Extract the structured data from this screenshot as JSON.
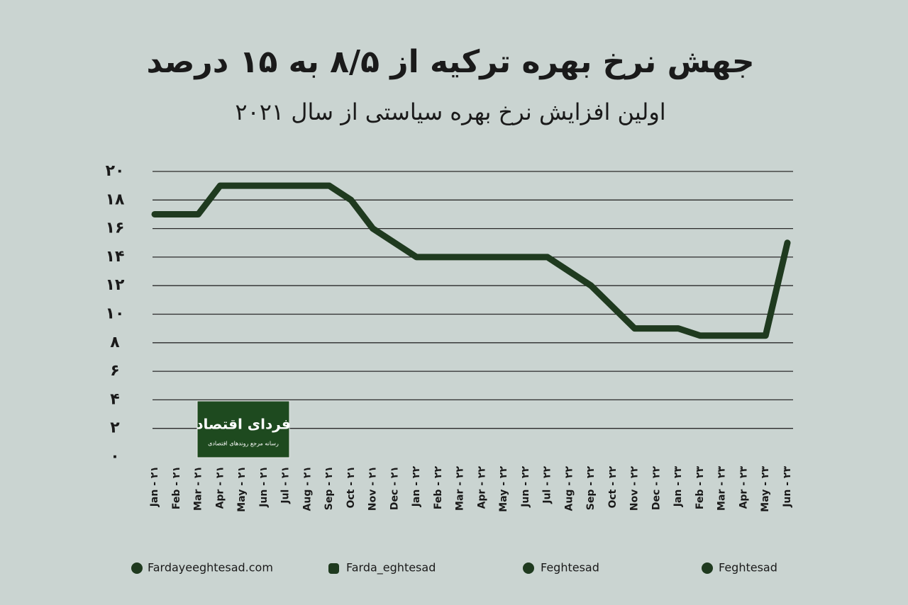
{
  "chart_data": {
    "type": "line",
    "title": "جهش نرخ بهره ترکیه از ۸/۵ به ۱۵ درصد",
    "subtitle": "اولین افزایش نرخ بهره سیاستی از سال ۲۰۲۱",
    "categories": [
      "Jan - ۲۱",
      "Feb - ۲۱",
      "Mar - ۲۱",
      "Apr - ۲۱",
      "May - ۲۱",
      "Jun - ۲۱",
      "Jul - ۲۱",
      "Aug - ۲۱",
      "Sep - ۲۱",
      "Oct - ۲۱",
      "Nov - ۲۱",
      "Dec - ۲۱",
      "Jan - ۲۲",
      "Feb - ۲۲",
      "Mar - ۲۲",
      "Apr - ۲۲",
      "May - ۲۲",
      "Jun - ۲۲",
      "Jul - ۲۲",
      "Aug - ۲۲",
      "Sep - ۲۲",
      "Oct - ۲۲",
      "Nov - ۲۲",
      "Dec - ۲۲",
      "Jan - ۲۳",
      "Feb - ۲۳",
      "Mar - ۲۳",
      "Apr - ۲۳",
      "May - ۲۳",
      "Jun - ۲۳"
    ],
    "values": [
      17,
      17,
      17,
      19,
      19,
      19,
      19,
      19,
      19,
      18,
      16,
      15,
      14,
      14,
      14,
      14,
      14,
      14,
      14,
      13,
      12,
      10.5,
      9,
      9,
      9,
      8.5,
      8.5,
      8.5,
      8.5,
      15
    ],
    "color": "#1f3a1f",
    "ylim": [
      0,
      20
    ],
    "yticks": [
      {
        "value": 0,
        "label": "۰"
      },
      {
        "value": 2,
        "label": "۲"
      },
      {
        "value": 4,
        "label": "۴"
      },
      {
        "value": 6,
        "label": "۶"
      },
      {
        "value": 8,
        "label": "۸"
      },
      {
        "value": 10,
        "label": "۱۰"
      },
      {
        "value": 12,
        "label": "۱۲"
      },
      {
        "value": 14,
        "label": "۱۴"
      },
      {
        "value": 16,
        "label": "۱۶"
      },
      {
        "value": 18,
        "label": "۱۸"
      },
      {
        "value": 20,
        "label": "۲۰"
      }
    ],
    "grid": true
  },
  "logo": {
    "name": "فردای اقتصاد",
    "tagline": "رسانه مرجع روندهای اقتصادی"
  },
  "footer": [
    "Fardayeeghtesad.com",
    "Farda_eghtesad",
    "Feghtesad",
    "Feghtesad"
  ]
}
